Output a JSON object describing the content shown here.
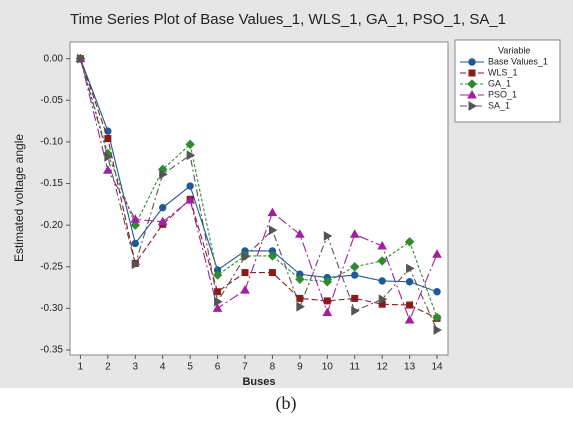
{
  "chart_data": {
    "type": "line",
    "title": "Time Series Plot of Base Values_1, WLS_1, GA_1, PSO_1, SA_1",
    "x_label": "Buses",
    "y_label": "Estimated voltage angle",
    "caption": "(b)",
    "legend_title": "Variable",
    "legend": "right",
    "x": [
      1,
      2,
      3,
      4,
      5,
      6,
      7,
      8,
      9,
      10,
      11,
      12,
      13,
      14
    ],
    "xlim": [
      0.62,
      14.4
    ],
    "xticks": [
      1,
      2,
      3,
      4,
      5,
      6,
      7,
      8,
      9,
      10,
      11,
      12,
      13,
      14
    ],
    "ylim": [
      -0.356,
      0.02
    ],
    "yticks": [
      {
        "value": 0,
        "label": "0.00"
      },
      {
        "value": -0.05,
        "label": "-0.05"
      },
      {
        "value": -0.1,
        "label": "-0.10"
      },
      {
        "value": -0.15,
        "label": "-0.15"
      },
      {
        "value": -0.2,
        "label": "-0.20"
      },
      {
        "value": -0.25,
        "label": "-0.25"
      },
      {
        "value": -0.3,
        "label": "-0.30"
      },
      {
        "value": -0.35,
        "label": "-0.35"
      }
    ],
    "series": [
      {
        "name": "Base Values_1",
        "color": "#1f5a96",
        "marker": "circle",
        "dash": "none",
        "values": [
          0,
          -0.087,
          -0.222,
          -0.179,
          -0.153,
          -0.254,
          -0.231,
          -0.231,
          -0.259,
          -0.263,
          -0.26,
          -0.267,
          -0.268,
          -0.28
        ]
      },
      {
        "name": "WLS_1",
        "color": "#8b1a1a",
        "marker": "square",
        "dash": "6 3",
        "values": [
          0,
          -0.096,
          -0.246,
          -0.199,
          -0.169,
          -0.28,
          -0.257,
          -0.257,
          -0.288,
          -0.291,
          -0.288,
          -0.295,
          -0.296,
          -0.312
        ]
      },
      {
        "name": "GA_1",
        "color": "#2e8b2e",
        "marker": "diamond",
        "dash": "3 2",
        "values": [
          0,
          -0.114,
          -0.2,
          -0.133,
          -0.103,
          -0.26,
          -0.237,
          -0.237,
          -0.265,
          -0.268,
          -0.25,
          -0.243,
          -0.22,
          -0.311
        ]
      },
      {
        "name": "PSO_1",
        "color": "#a020a0",
        "marker": "triangle",
        "dash": "10 3 2 3",
        "values": [
          0,
          -0.134,
          -0.193,
          -0.196,
          -0.17,
          -0.3,
          -0.278,
          -0.185,
          -0.211,
          -0.305,
          -0.211,
          -0.225,
          -0.314,
          -0.235
        ]
      },
      {
        "name": "SA_1",
        "color": "#555555",
        "marker": "triangle-right",
        "dash": "7 3 2 3",
        "values": [
          0,
          -0.118,
          -0.247,
          -0.139,
          -0.116,
          -0.292,
          -0.238,
          -0.206,
          -0.298,
          -0.213,
          -0.303,
          -0.289,
          -0.252,
          -0.326
        ]
      }
    ]
  }
}
